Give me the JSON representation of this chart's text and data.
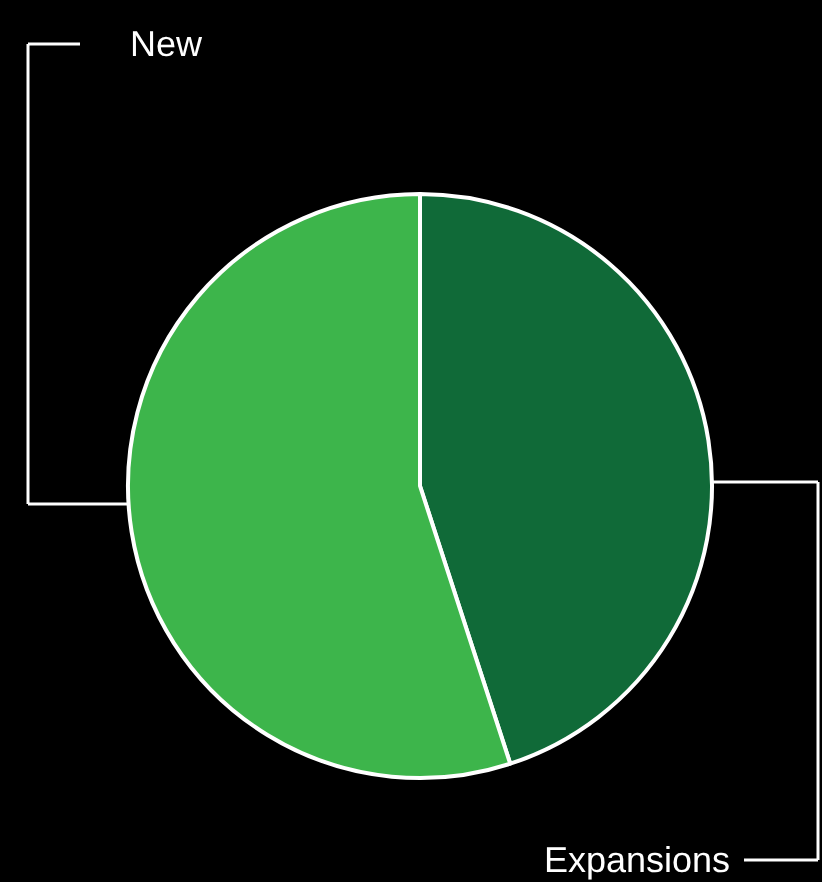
{
  "chart_data": {
    "type": "pie",
    "categories": [
      "Expansions",
      "New"
    ],
    "values": [
      45,
      55
    ],
    "colors": [
      "#106a38",
      "#3db54b"
    ]
  }
}
